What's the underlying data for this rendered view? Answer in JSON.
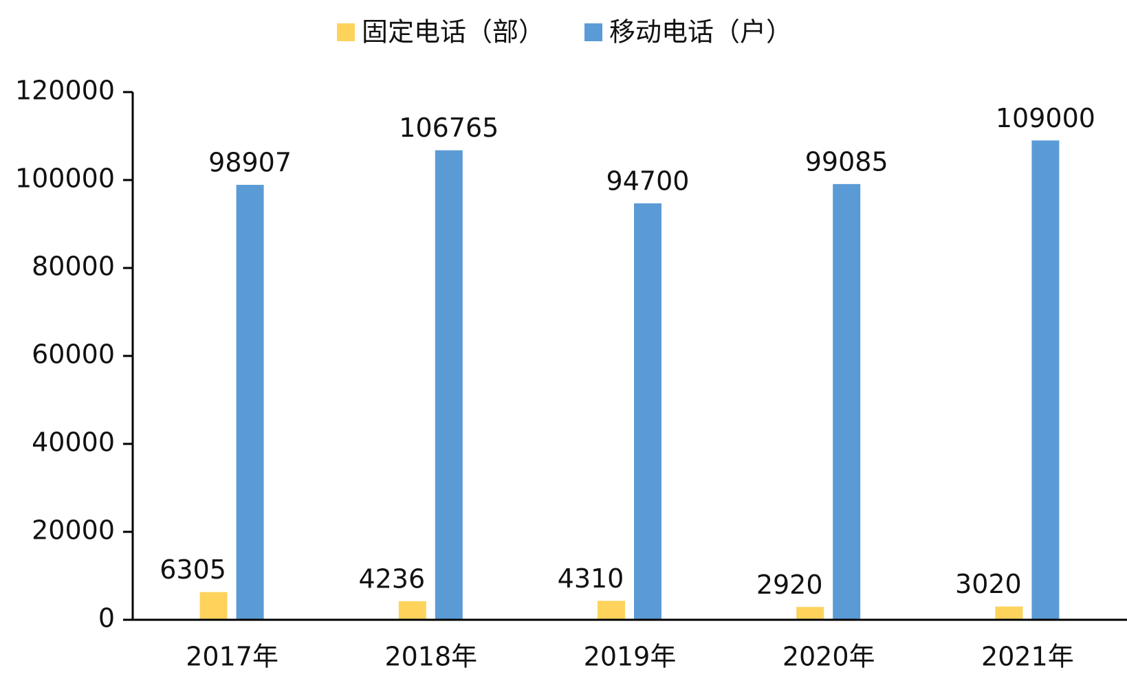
{
  "chart_data": {
    "type": "bar",
    "categories": [
      "2017年",
      "2018年",
      "2019年",
      "2020年",
      "2021年"
    ],
    "series": [
      {
        "name": "固定电话（部）",
        "color": "#fdd35c",
        "values": [
          6305,
          4236,
          4310,
          2920,
          3020
        ]
      },
      {
        "name": "移动电话（户）",
        "color": "#5b9bd5",
        "values": [
          98907,
          106765,
          94700,
          99085,
          109000
        ]
      }
    ],
    "ylim": [
      0,
      120000
    ],
    "yticks": [
      0,
      20000,
      40000,
      60000,
      80000,
      100000,
      120000
    ],
    "data_labels": true,
    "legend": "top"
  }
}
